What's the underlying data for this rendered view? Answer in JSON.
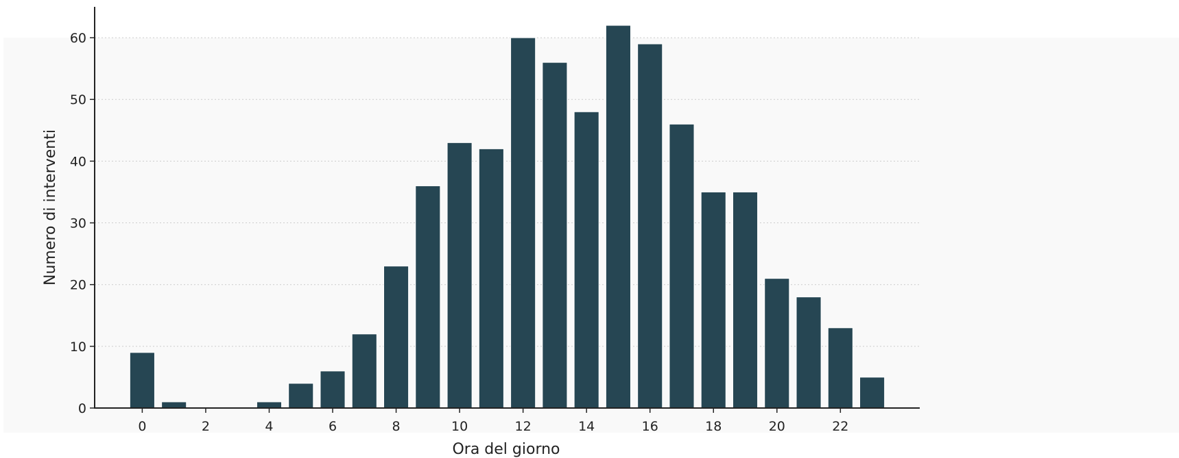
{
  "chart_data": {
    "type": "bar",
    "title": "",
    "xlabel": "Ora del giorno",
    "ylabel": "Numero di interventi",
    "categories": [
      0,
      1,
      2,
      3,
      4,
      5,
      6,
      7,
      8,
      9,
      10,
      11,
      12,
      13,
      14,
      15,
      16,
      17,
      18,
      19,
      20,
      21,
      22,
      23
    ],
    "values": [
      9,
      1,
      0,
      0,
      1,
      4,
      6,
      12,
      23,
      36,
      43,
      42,
      60,
      56,
      48,
      62,
      59,
      46,
      35,
      35,
      21,
      18,
      13,
      5
    ],
    "xticks": [
      "0",
      "2",
      "4",
      "6",
      "8",
      "10",
      "12",
      "14",
      "16",
      "18",
      "20",
      "22"
    ],
    "yticks": [
      "0",
      "10",
      "20",
      "30",
      "40",
      "50",
      "60"
    ],
    "ylim": [
      0,
      65
    ],
    "xlim": [
      -1.5,
      24.5
    ],
    "grid": "horizontal dotted",
    "legend": "none",
    "colors": {
      "bar": "#264653",
      "bar_edge": "#ffffff",
      "plot_background": "#f9f9f9",
      "gridline": "#cccccc",
      "axis": "#222222"
    }
  }
}
